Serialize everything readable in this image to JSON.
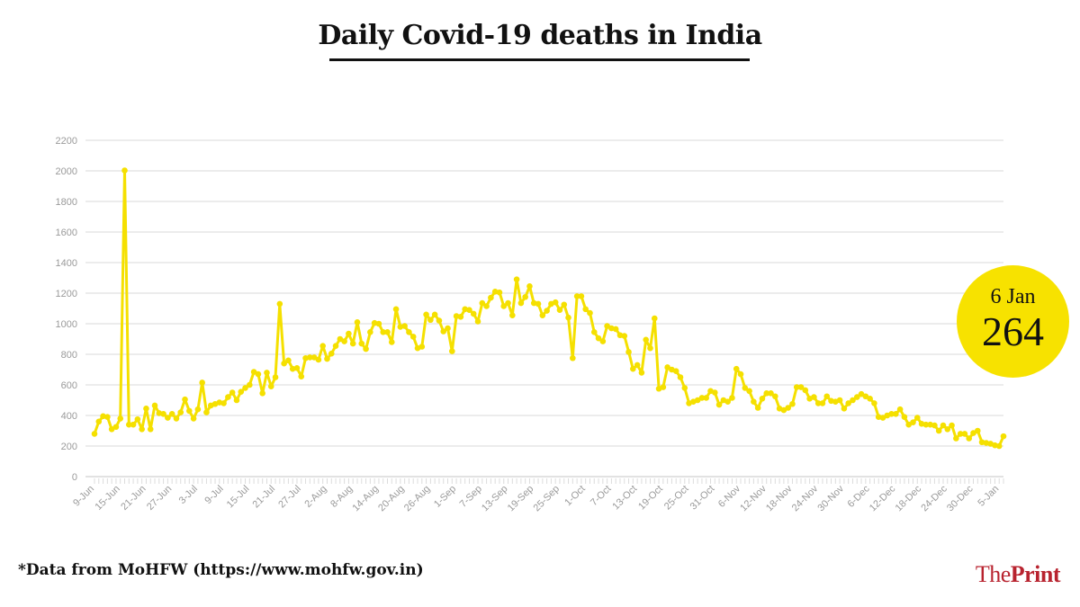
{
  "title": "Daily Covid-19 deaths in India",
  "footnote": "*Data from MoHFW (https://www.mohfw.gov.in)",
  "logo": {
    "part1": "The",
    "part2": "Print"
  },
  "callout": {
    "date": "6 Jan",
    "value": "264"
  },
  "colors": {
    "line": "#f5e000",
    "callout": "#f7e200",
    "grid": "#e6e6e6",
    "axis_text": "#9a9a9a",
    "logo": "#b8232f"
  },
  "chart_data": {
    "type": "line",
    "title": "Daily Covid-19 deaths in India",
    "xlabel": "",
    "ylabel": "",
    "x_range": [
      "9-Jun",
      "6-Jan"
    ],
    "ylim": [
      0,
      2200
    ],
    "y_ticks": [
      "0",
      "200",
      "400",
      "600",
      "800",
      "1000",
      "1200",
      "1400",
      "1600",
      "1800",
      "2000",
      "2200"
    ],
    "x_tick_labels": [
      "9-Jun",
      "15-Jun",
      "21-Jun",
      "27-Jun",
      "3-Jul",
      "9-Jul",
      "15-Jul",
      "21-Jul",
      "27-Jul",
      "2-Aug",
      "8-Aug",
      "14-Aug",
      "20-Aug",
      "26-Aug",
      "1-Sep",
      "7-Sep",
      "13-Sep",
      "19-Sep",
      "25-Sep",
      "1-Oct",
      "7-Oct",
      "13-Oct",
      "19-Oct",
      "25-Oct",
      "31-Oct",
      "6-Nov",
      "12-Nov",
      "18-Nov",
      "24-Nov",
      "30-Nov",
      "6-Dec",
      "12-Dec",
      "18-Dec",
      "24-Dec",
      "30-Dec",
      "5-Jan"
    ],
    "grid": true,
    "legend": "none",
    "values": [
      280,
      360,
      395,
      390,
      310,
      325,
      380,
      2003,
      340,
      340,
      375,
      310,
      445,
      310,
      465,
      415,
      410,
      385,
      410,
      380,
      420,
      505,
      430,
      380,
      440,
      615,
      420,
      465,
      475,
      485,
      480,
      520,
      550,
      500,
      555,
      580,
      600,
      685,
      670,
      545,
      680,
      590,
      650,
      1130,
      740,
      760,
      705,
      710,
      655,
      775,
      780,
      780,
      765,
      855,
      770,
      805,
      855,
      900,
      885,
      935,
      870,
      1010,
      870,
      835,
      945,
      1005,
      1000,
      945,
      945,
      880,
      1095,
      980,
      985,
      945,
      915,
      840,
      850,
      1060,
      1025,
      1060,
      1020,
      950,
      970,
      820,
      1050,
      1045,
      1095,
      1090,
      1065,
      1015,
      1135,
      1115,
      1170,
      1210,
      1205,
      1115,
      1135,
      1055,
      1290,
      1135,
      1175,
      1245,
      1135,
      1130,
      1055,
      1085,
      1130,
      1140,
      1090,
      1125,
      1040,
      775,
      1180,
      1180,
      1095,
      1070,
      945,
      905,
      885,
      985,
      970,
      965,
      925,
      920,
      815,
      705,
      730,
      680,
      895,
      840,
      1035,
      575,
      585,
      715,
      700,
      690,
      650,
      580,
      480,
      490,
      500,
      515,
      515,
      560,
      550,
      470,
      500,
      490,
      515,
      705,
      670,
      580,
      560,
      490,
      450,
      510,
      545,
      545,
      525,
      445,
      435,
      450,
      475,
      585,
      585,
      565,
      510,
      520,
      480,
      480,
      525,
      495,
      490,
      500,
      445,
      480,
      500,
      520,
      540,
      525,
      510,
      480,
      390,
      385,
      400,
      410,
      410,
      440,
      390,
      340,
      355,
      385,
      345,
      340,
      340,
      335,
      300,
      335,
      310,
      335,
      250,
      280,
      280,
      250,
      285,
      300,
      225,
      220,
      215,
      205,
      200,
      264
    ]
  }
}
